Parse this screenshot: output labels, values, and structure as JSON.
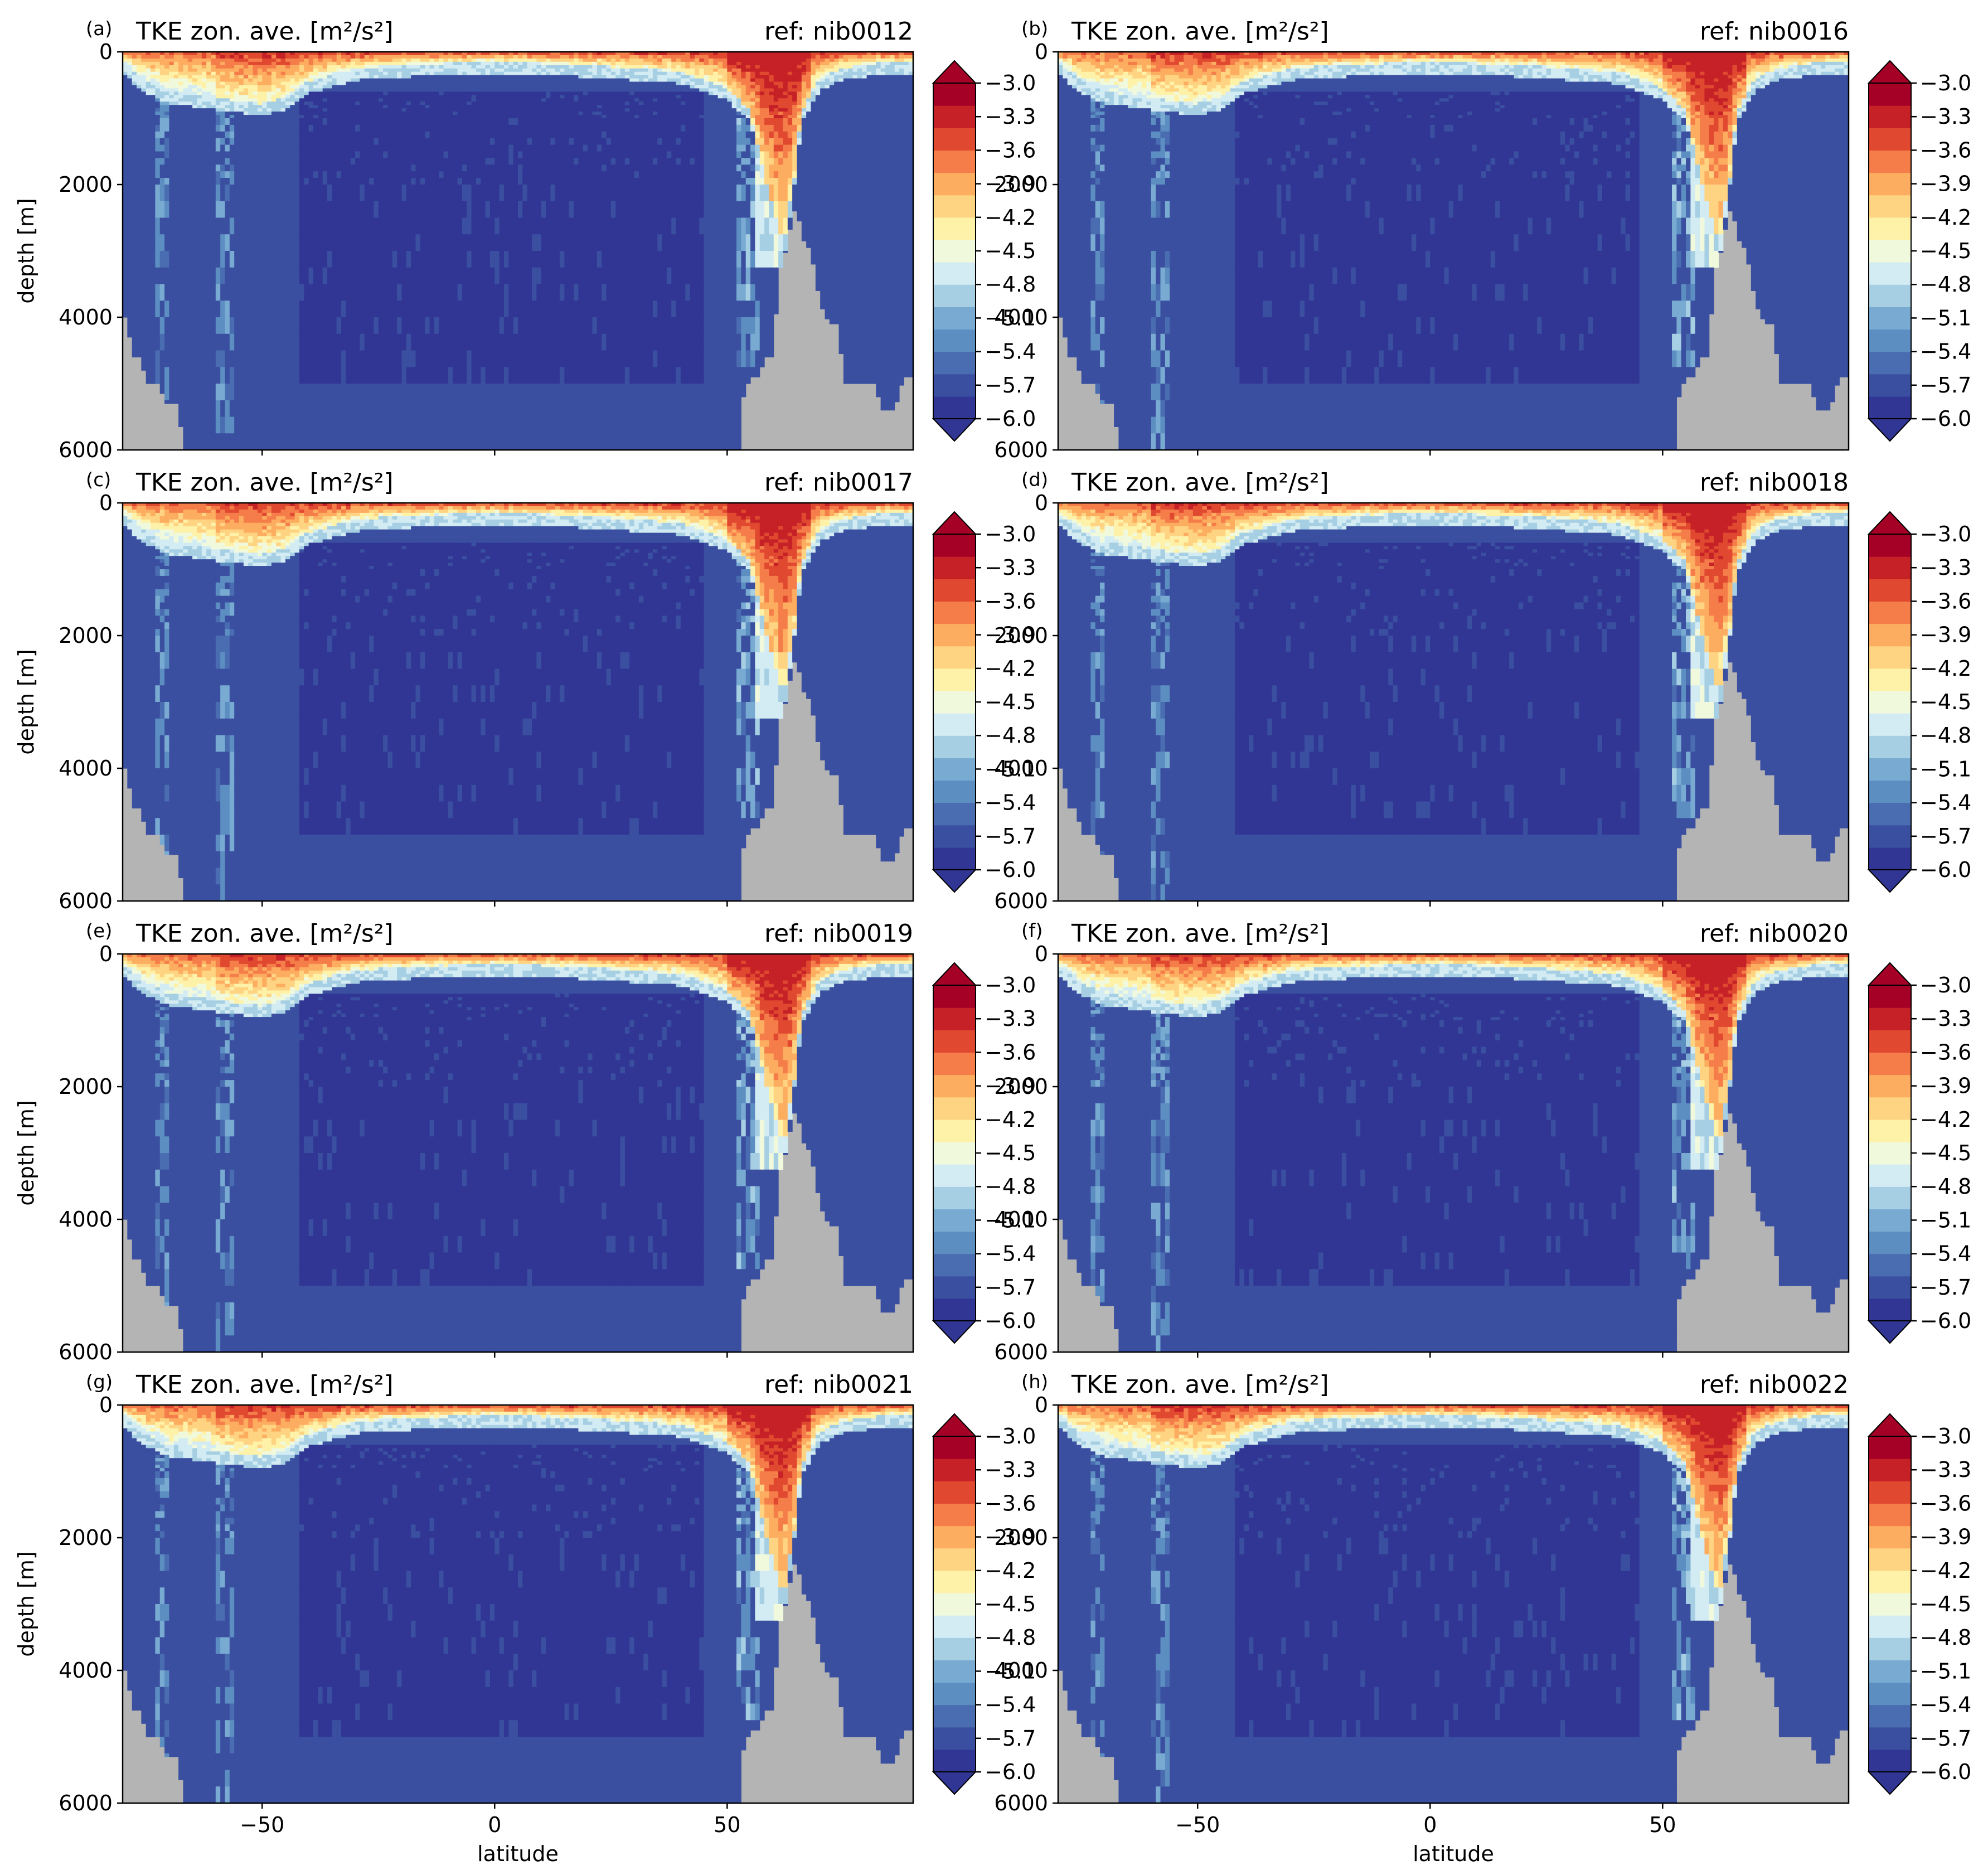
{
  "figure": {
    "xlabel": "latitude",
    "ylabel": "depth [m]",
    "colors": {
      "land": "#b4b4b4",
      "cmap": [
        "#313695",
        "#3a4fa0",
        "#4a6cb0",
        "#5c8ec2",
        "#79abd2",
        "#a6cfe4",
        "#d3ecf3",
        "#f1f9dd",
        "#fef1a8",
        "#fed382",
        "#fdad60",
        "#f57d4a",
        "#e04930",
        "#c52127",
        "#a50026"
      ],
      "under": "#313695",
      "over": "#a50026"
    }
  },
  "chart_data": [
    {
      "type": "heatmap",
      "panel_label": "(a)",
      "title": "TKE zon. ave. [m²/s²]",
      "ref": "ref: nib0012",
      "xlabel": "",
      "ylabel": "depth [m]",
      "x_ticks": [
        -50,
        0,
        50
      ],
      "x_tick_labels": [
        "",
        "",
        ""
      ],
      "y_ticks": [
        0,
        2000,
        4000,
        6000
      ],
      "y_tick_labels": [
        "0",
        "2000",
        "4000",
        "6000"
      ],
      "xlim": [
        -80,
        90
      ],
      "ylim": [
        6000,
        0
      ],
      "colorbar": {
        "ticks": [
          -3.0,
          -3.3,
          -3.6,
          -3.9,
          -4.2,
          -4.5,
          -4.8,
          -5.1,
          -5.4,
          -5.7,
          -6.0
        ],
        "tick_labels": [
          "−3.0",
          "−3.3",
          "−3.6",
          "−3.9",
          "−4.2",
          "−4.5",
          "−4.8",
          "−5.1",
          "−5.4",
          "−5.7",
          "−6.0"
        ],
        "range": [
          -6.0,
          -3.0
        ],
        "extend": "both"
      }
    },
    {
      "type": "heatmap",
      "panel_label": "(b)",
      "title": "TKE zon. ave. [m²/s²]",
      "ref": "ref: nib0016",
      "xlabel": "",
      "ylabel": "",
      "x_ticks": [
        -50,
        0,
        50
      ],
      "x_tick_labels": [
        "",
        "",
        ""
      ],
      "y_ticks": [
        0,
        2000,
        4000,
        6000
      ],
      "y_tick_labels": [
        "0",
        "2000",
        "4000",
        "6000"
      ],
      "xlim": [
        -80,
        90
      ],
      "ylim": [
        6000,
        0
      ],
      "colorbar": {
        "ticks": [
          -3.0,
          -3.3,
          -3.6,
          -3.9,
          -4.2,
          -4.5,
          -4.8,
          -5.1,
          -5.4,
          -5.7,
          -6.0
        ],
        "tick_labels": [
          "−3.0",
          "−3.3",
          "−3.6",
          "−3.9",
          "−4.2",
          "−4.5",
          "−4.8",
          "−5.1",
          "−5.4",
          "−5.7",
          "−6.0"
        ],
        "range": [
          -6.0,
          -3.0
        ],
        "extend": "both"
      }
    },
    {
      "type": "heatmap",
      "panel_label": "(c)",
      "title": "TKE zon. ave. [m²/s²]",
      "ref": "ref: nib0017",
      "xlabel": "",
      "ylabel": "depth [m]",
      "x_ticks": [
        -50,
        0,
        50
      ],
      "x_tick_labels": [
        "",
        "",
        ""
      ],
      "y_ticks": [
        0,
        2000,
        4000,
        6000
      ],
      "y_tick_labels": [
        "0",
        "2000",
        "4000",
        "6000"
      ],
      "xlim": [
        -80,
        90
      ],
      "ylim": [
        6000,
        0
      ],
      "colorbar": {
        "ticks": [
          -3.0,
          -3.3,
          -3.6,
          -3.9,
          -4.2,
          -4.5,
          -4.8,
          -5.1,
          -5.4,
          -5.7,
          -6.0
        ],
        "tick_labels": [
          "−3.0",
          "−3.3",
          "−3.6",
          "−3.9",
          "−4.2",
          "−4.5",
          "−4.8",
          "−5.1",
          "−5.4",
          "−5.7",
          "−6.0"
        ],
        "range": [
          -6.0,
          -3.0
        ],
        "extend": "both"
      }
    },
    {
      "type": "heatmap",
      "panel_label": "(d)",
      "title": "TKE zon. ave. [m²/s²]",
      "ref": "ref: nib0018",
      "xlabel": "",
      "ylabel": "",
      "x_ticks": [
        -50,
        0,
        50
      ],
      "x_tick_labels": [
        "",
        "",
        ""
      ],
      "y_ticks": [
        0,
        2000,
        4000,
        6000
      ],
      "y_tick_labels": [
        "0",
        "2000",
        "4000",
        "6000"
      ],
      "xlim": [
        -80,
        90
      ],
      "ylim": [
        6000,
        0
      ],
      "colorbar": {
        "ticks": [
          -3.0,
          -3.3,
          -3.6,
          -3.9,
          -4.2,
          -4.5,
          -4.8,
          -5.1,
          -5.4,
          -5.7,
          -6.0
        ],
        "tick_labels": [
          "−3.0",
          "−3.3",
          "−3.6",
          "−3.9",
          "−4.2",
          "−4.5",
          "−4.8",
          "−5.1",
          "−5.4",
          "−5.7",
          "−6.0"
        ],
        "range": [
          -6.0,
          -3.0
        ],
        "extend": "both"
      }
    },
    {
      "type": "heatmap",
      "panel_label": "(e)",
      "title": "TKE zon. ave. [m²/s²]",
      "ref": "ref: nib0019",
      "xlabel": "",
      "ylabel": "depth [m]",
      "x_ticks": [
        -50,
        0,
        50
      ],
      "x_tick_labels": [
        "",
        "",
        ""
      ],
      "y_ticks": [
        0,
        2000,
        4000,
        6000
      ],
      "y_tick_labels": [
        "0",
        "2000",
        "4000",
        "6000"
      ],
      "xlim": [
        -80,
        90
      ],
      "ylim": [
        6000,
        0
      ],
      "colorbar": {
        "ticks": [
          -3.0,
          -3.3,
          -3.6,
          -3.9,
          -4.2,
          -4.5,
          -4.8,
          -5.1,
          -5.4,
          -5.7,
          -6.0
        ],
        "tick_labels": [
          "−3.0",
          "−3.3",
          "−3.6",
          "−3.9",
          "−4.2",
          "−4.5",
          "−4.8",
          "−5.1",
          "−5.4",
          "−5.7",
          "−6.0"
        ],
        "range": [
          -6.0,
          -3.0
        ],
        "extend": "both"
      }
    },
    {
      "type": "heatmap",
      "panel_label": "(f)",
      "title": "TKE zon. ave. [m²/s²]",
      "ref": "ref: nib0020",
      "xlabel": "",
      "ylabel": "",
      "x_ticks": [
        -50,
        0,
        50
      ],
      "x_tick_labels": [
        "",
        "",
        ""
      ],
      "y_ticks": [
        0,
        2000,
        4000,
        6000
      ],
      "y_tick_labels": [
        "0",
        "2000",
        "4000",
        "6000"
      ],
      "xlim": [
        -80,
        90
      ],
      "ylim": [
        6000,
        0
      ],
      "colorbar": {
        "ticks": [
          -3.0,
          -3.3,
          -3.6,
          -3.9,
          -4.2,
          -4.5,
          -4.8,
          -5.1,
          -5.4,
          -5.7,
          -6.0
        ],
        "tick_labels": [
          "−3.0",
          "−3.3",
          "−3.6",
          "−3.9",
          "−4.2",
          "−4.5",
          "−4.8",
          "−5.1",
          "−5.4",
          "−5.7",
          "−6.0"
        ],
        "range": [
          -6.0,
          -3.0
        ],
        "extend": "both"
      }
    },
    {
      "type": "heatmap",
      "panel_label": "(g)",
      "title": "TKE zon. ave. [m²/s²]",
      "ref": "ref: nib0021",
      "xlabel": "latitude",
      "ylabel": "depth [m]",
      "x_ticks": [
        -50,
        0,
        50
      ],
      "x_tick_labels": [
        "−50",
        "0",
        "50"
      ],
      "y_ticks": [
        0,
        2000,
        4000,
        6000
      ],
      "y_tick_labels": [
        "0",
        "2000",
        "4000",
        "6000"
      ],
      "xlim": [
        -80,
        90
      ],
      "ylim": [
        6000,
        0
      ],
      "colorbar": {
        "ticks": [
          -3.0,
          -3.3,
          -3.6,
          -3.9,
          -4.2,
          -4.5,
          -4.8,
          -5.1,
          -5.4,
          -5.7,
          -6.0
        ],
        "tick_labels": [
          "−3.0",
          "−3.3",
          "−3.6",
          "−3.9",
          "−4.2",
          "−4.5",
          "−4.8",
          "−5.1",
          "−5.4",
          "−5.7",
          "−6.0"
        ],
        "range": [
          -6.0,
          -3.0
        ],
        "extend": "both"
      }
    },
    {
      "type": "heatmap",
      "panel_label": "(h)",
      "title": "TKE zon. ave. [m²/s²]",
      "ref": "ref: nib0022",
      "xlabel": "latitude",
      "ylabel": "",
      "x_ticks": [
        -50,
        0,
        50
      ],
      "x_tick_labels": [
        "−50",
        "0",
        "50"
      ],
      "y_ticks": [
        0,
        2000,
        4000,
        6000
      ],
      "y_tick_labels": [
        "0",
        "2000",
        "4000",
        "6000"
      ],
      "xlim": [
        -80,
        90
      ],
      "ylim": [
        6000,
        0
      ],
      "colorbar": {
        "ticks": [
          -3.0,
          -3.3,
          -3.6,
          -3.9,
          -4.2,
          -4.5,
          -4.8,
          -5.1,
          -5.4,
          -5.7,
          -6.0
        ],
        "tick_labels": [
          "−3.0",
          "−3.3",
          "−3.6",
          "−3.9",
          "−4.2",
          "−4.5",
          "−4.8",
          "−5.1",
          "−5.4",
          "−5.7",
          "−6.0"
        ],
        "range": [
          -6.0,
          -3.0
        ],
        "extend": "both"
      }
    }
  ]
}
